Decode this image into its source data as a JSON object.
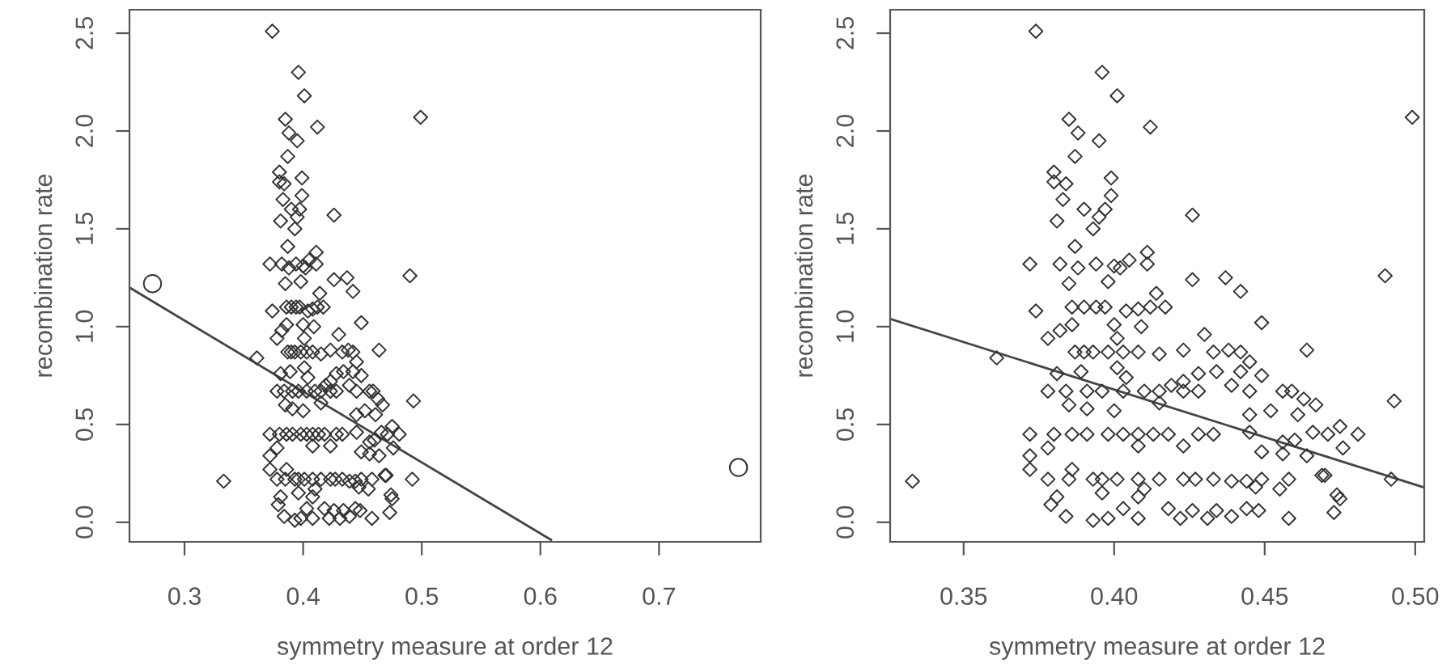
{
  "chart_data": [
    {
      "type": "scatter",
      "xlabel": "symmetry measure at order 12",
      "ylabel": "recombination rate",
      "xlim": [
        0.2536,
        0.7857
      ],
      "ylim": [
        -0.1,
        2.62
      ],
      "xticks": [
        0.3,
        0.4,
        0.5,
        0.6,
        0.7
      ],
      "yticks": [
        {
          "value": 0,
          "label": "0.0"
        },
        {
          "value": 0.5,
          "label": "0.5"
        },
        {
          "value": 1,
          "label": "1.0"
        },
        {
          "value": 1.5,
          "label": "1.5"
        },
        {
          "value": 2,
          "label": "2.0"
        },
        {
          "value": 2.5,
          "label": "2.5"
        }
      ],
      "grid": false,
      "legend": false,
      "series": [
        {
          "marker": "diamond",
          "color": "#333333",
          "x": [
            0.333,
            0.374,
            0.396,
            0.401,
            0.412,
            0.499,
            0.385,
            0.388,
            0.395,
            0.387,
            0.38,
            0.38,
            0.384,
            0.399,
            0.399,
            0.383,
            0.397,
            0.39,
            0.395,
            0.393,
            0.381,
            0.426,
            0.387,
            0.372,
            0.382,
            0.388,
            0.394,
            0.4,
            0.402,
            0.405,
            0.411,
            0.411,
            0.385,
            0.398,
            0.426,
            0.437,
            0.442,
            0.414,
            0.49,
            0.493,
            0.374,
            0.386,
            0.39,
            0.394,
            0.397,
            0.404,
            0.408,
            0.412,
            0.417,
            0.4,
            0.409,
            0.386,
            0.449,
            0.378,
            0.382,
            0.401,
            0.387,
            0.39,
            0.393,
            0.398,
            0.403,
            0.408,
            0.415,
            0.423,
            0.43,
            0.433,
            0.438,
            0.442,
            0.464,
            0.361,
            0.381,
            0.389,
            0.401,
            0.404,
            0.419,
            0.423,
            0.428,
            0.434,
            0.439,
            0.442,
            0.445,
            0.449,
            0.445,
            0.378,
            0.384,
            0.391,
            0.396,
            0.403,
            0.41,
            0.415,
            0.423,
            0.428,
            0.456,
            0.459,
            0.463,
            0.467,
            0.415,
            0.385,
            0.4,
            0.391,
            0.452,
            0.445,
            0.461,
            0.372,
            0.38,
            0.386,
            0.391,
            0.398,
            0.403,
            0.408,
            0.413,
            0.418,
            0.428,
            0.433,
            0.423,
            0.408,
            0.445,
            0.471,
            0.475,
            0.481,
            0.476,
            0.372,
            0.378,
            0.449,
            0.456,
            0.466,
            0.46,
            0.464,
            0.456,
            0.372,
            0.386,
            0.378,
            0.385,
            0.393,
            0.396,
            0.401,
            0.408,
            0.415,
            0.423,
            0.427,
            0.433,
            0.439,
            0.444,
            0.449,
            0.458,
            0.469,
            0.492,
            0.379,
            0.381,
            0.384,
            0.393,
            0.398,
            0.403,
            0.396,
            0.408,
            0.408,
            0.418,
            0.422,
            0.426,
            0.431,
            0.434,
            0.439,
            0.444,
            0.448,
            0.458,
            0.455,
            0.473,
            0.474,
            0.475,
            0.47,
            0.41,
            0.447
          ],
          "values": [
            0.21,
            2.51,
            2.3,
            2.18,
            2.02,
            2.07,
            2.06,
            1.99,
            1.95,
            1.87,
            1.79,
            1.74,
            1.73,
            1.76,
            1.67,
            1.65,
            1.6,
            1.6,
            1.56,
            1.5,
            1.54,
            1.57,
            1.41,
            1.32,
            1.32,
            1.3,
            1.32,
            1.31,
            1.3,
            1.34,
            1.38,
            1.32,
            1.22,
            1.23,
            1.24,
            1.25,
            1.18,
            1.17,
            1.26,
            0.62,
            1.08,
            1.1,
            1.1,
            1.1,
            1.1,
            1.08,
            1.09,
            1.1,
            1.1,
            1.01,
            1.0,
            1.01,
            1.02,
            0.94,
            0.98,
            0.94,
            0.87,
            0.87,
            0.87,
            0.87,
            0.87,
            0.87,
            0.86,
            0.88,
            0.96,
            0.87,
            0.88,
            0.87,
            0.88,
            0.84,
            0.76,
            0.77,
            0.79,
            0.74,
            0.7,
            0.72,
            0.76,
            0.77,
            0.7,
            0.77,
            0.67,
            0.75,
            0.82,
            0.67,
            0.67,
            0.67,
            0.67,
            0.67,
            0.67,
            0.67,
            0.67,
            0.67,
            0.67,
            0.67,
            0.63,
            0.6,
            0.61,
            0.6,
            0.57,
            0.58,
            0.57,
            0.55,
            0.55,
            0.45,
            0.45,
            0.45,
            0.45,
            0.45,
            0.45,
            0.45,
            0.45,
            0.45,
            0.45,
            0.45,
            0.39,
            0.39,
            0.46,
            0.45,
            0.49,
            0.45,
            0.38,
            0.34,
            0.38,
            0.36,
            0.35,
            0.46,
            0.42,
            0.34,
            0.41,
            0.27,
            0.27,
            0.22,
            0.22,
            0.22,
            0.22,
            0.22,
            0.22,
            0.22,
            0.22,
            0.22,
            0.22,
            0.21,
            0.21,
            0.22,
            0.22,
            0.24,
            0.22,
            0.09,
            0.13,
            0.03,
            0.01,
            0.02,
            0.07,
            0.15,
            0.02,
            0.13,
            0.07,
            0.02,
            0.06,
            0.02,
            0.06,
            0.03,
            0.07,
            0.06,
            0.02,
            0.17,
            0.05,
            0.14,
            0.12,
            0.24,
            0.17,
            0.18
          ]
        },
        {
          "marker": "circle",
          "color": "#333333",
          "x": [
            0.273,
            0.767
          ],
          "values": [
            1.22,
            0.28
          ]
        },
        {
          "type": "line",
          "marker": "none",
          "line_style": "solid",
          "color": "#444444",
          "x": [
            0.2536,
            0.609
          ],
          "values": [
            1.2,
            -0.09
          ]
        }
      ]
    },
    {
      "type": "scatter",
      "xlabel": "symmetry measure at order 12",
      "ylabel": "recombination rate",
      "xlim": [
        0.3256,
        0.503
      ],
      "ylim": [
        -0.1,
        2.62
      ],
      "xticks": [
        {
          "value": 0.35,
          "label": "0.35"
        },
        {
          "value": 0.4,
          "label": "0.40"
        },
        {
          "value": 0.45,
          "label": "0.45"
        },
        {
          "value": 0.5,
          "label": "0.50"
        }
      ],
      "yticks": [
        {
          "value": 0,
          "label": "0.0"
        },
        {
          "value": 0.5,
          "label": "0.5"
        },
        {
          "value": 1,
          "label": "1.0"
        },
        {
          "value": 1.5,
          "label": "1.5"
        },
        {
          "value": 2,
          "label": "2.0"
        },
        {
          "value": 2.5,
          "label": "2.5"
        }
      ],
      "grid": false,
      "legend": false,
      "series": [
        {
          "marker": "diamond",
          "color": "#333333",
          "x": [
            0.333,
            0.374,
            0.396,
            0.401,
            0.412,
            0.499,
            0.385,
            0.388,
            0.395,
            0.387,
            0.38,
            0.38,
            0.384,
            0.399,
            0.399,
            0.383,
            0.397,
            0.39,
            0.395,
            0.393,
            0.381,
            0.426,
            0.387,
            0.372,
            0.382,
            0.388,
            0.394,
            0.4,
            0.402,
            0.405,
            0.411,
            0.411,
            0.385,
            0.398,
            0.426,
            0.437,
            0.442,
            0.414,
            0.49,
            0.493,
            0.374,
            0.386,
            0.39,
            0.394,
            0.397,
            0.404,
            0.408,
            0.412,
            0.417,
            0.4,
            0.409,
            0.386,
            0.449,
            0.378,
            0.382,
            0.401,
            0.387,
            0.39,
            0.393,
            0.398,
            0.403,
            0.408,
            0.415,
            0.423,
            0.43,
            0.433,
            0.438,
            0.442,
            0.464,
            0.361,
            0.381,
            0.389,
            0.401,
            0.404,
            0.419,
            0.423,
            0.428,
            0.434,
            0.439,
            0.442,
            0.445,
            0.449,
            0.445,
            0.378,
            0.384,
            0.391,
            0.396,
            0.403,
            0.41,
            0.415,
            0.423,
            0.428,
            0.456,
            0.459,
            0.463,
            0.467,
            0.415,
            0.385,
            0.4,
            0.391,
            0.452,
            0.445,
            0.461,
            0.372,
            0.38,
            0.386,
            0.391,
            0.398,
            0.403,
            0.408,
            0.413,
            0.418,
            0.428,
            0.433,
            0.423,
            0.408,
            0.445,
            0.471,
            0.475,
            0.481,
            0.476,
            0.372,
            0.378,
            0.449,
            0.456,
            0.466,
            0.46,
            0.464,
            0.456,
            0.372,
            0.386,
            0.378,
            0.385,
            0.393,
            0.396,
            0.401,
            0.408,
            0.415,
            0.423,
            0.427,
            0.433,
            0.439,
            0.444,
            0.449,
            0.458,
            0.469,
            0.492,
            0.379,
            0.381,
            0.384,
            0.393,
            0.398,
            0.403,
            0.396,
            0.408,
            0.408,
            0.418,
            0.422,
            0.426,
            0.431,
            0.434,
            0.439,
            0.444,
            0.448,
            0.458,
            0.455,
            0.473,
            0.474,
            0.475,
            0.47,
            0.41,
            0.447
          ],
          "values": [
            0.21,
            2.51,
            2.3,
            2.18,
            2.02,
            2.07,
            2.06,
            1.99,
            1.95,
            1.87,
            1.79,
            1.74,
            1.73,
            1.76,
            1.67,
            1.65,
            1.6,
            1.6,
            1.56,
            1.5,
            1.54,
            1.57,
            1.41,
            1.32,
            1.32,
            1.3,
            1.32,
            1.31,
            1.3,
            1.34,
            1.38,
            1.32,
            1.22,
            1.23,
            1.24,
            1.25,
            1.18,
            1.17,
            1.26,
            0.62,
            1.08,
            1.1,
            1.1,
            1.1,
            1.1,
            1.08,
            1.09,
            1.1,
            1.1,
            1.01,
            1.0,
            1.01,
            1.02,
            0.94,
            0.98,
            0.94,
            0.87,
            0.87,
            0.87,
            0.87,
            0.87,
            0.87,
            0.86,
            0.88,
            0.96,
            0.87,
            0.88,
            0.87,
            0.88,
            0.84,
            0.76,
            0.77,
            0.79,
            0.74,
            0.7,
            0.72,
            0.76,
            0.77,
            0.7,
            0.77,
            0.67,
            0.75,
            0.82,
            0.67,
            0.67,
            0.67,
            0.67,
            0.67,
            0.67,
            0.67,
            0.67,
            0.67,
            0.67,
            0.67,
            0.63,
            0.6,
            0.61,
            0.6,
            0.57,
            0.58,
            0.57,
            0.55,
            0.55,
            0.45,
            0.45,
            0.45,
            0.45,
            0.45,
            0.45,
            0.45,
            0.45,
            0.45,
            0.45,
            0.45,
            0.39,
            0.39,
            0.46,
            0.45,
            0.49,
            0.45,
            0.38,
            0.34,
            0.38,
            0.36,
            0.35,
            0.46,
            0.42,
            0.34,
            0.41,
            0.27,
            0.27,
            0.22,
            0.22,
            0.22,
            0.22,
            0.22,
            0.22,
            0.22,
            0.22,
            0.22,
            0.22,
            0.21,
            0.21,
            0.22,
            0.22,
            0.24,
            0.22,
            0.09,
            0.13,
            0.03,
            0.01,
            0.02,
            0.07,
            0.15,
            0.02,
            0.13,
            0.07,
            0.02,
            0.06,
            0.02,
            0.06,
            0.03,
            0.07,
            0.06,
            0.02,
            0.17,
            0.05,
            0.14,
            0.12,
            0.24,
            0.17,
            0.18
          ]
        },
        {
          "type": "line",
          "marker": "none",
          "line_style": "solid",
          "color": "#444444",
          "x": [
            0.3256,
            0.5025
          ],
          "values": [
            1.04,
            0.18
          ]
        }
      ]
    }
  ]
}
